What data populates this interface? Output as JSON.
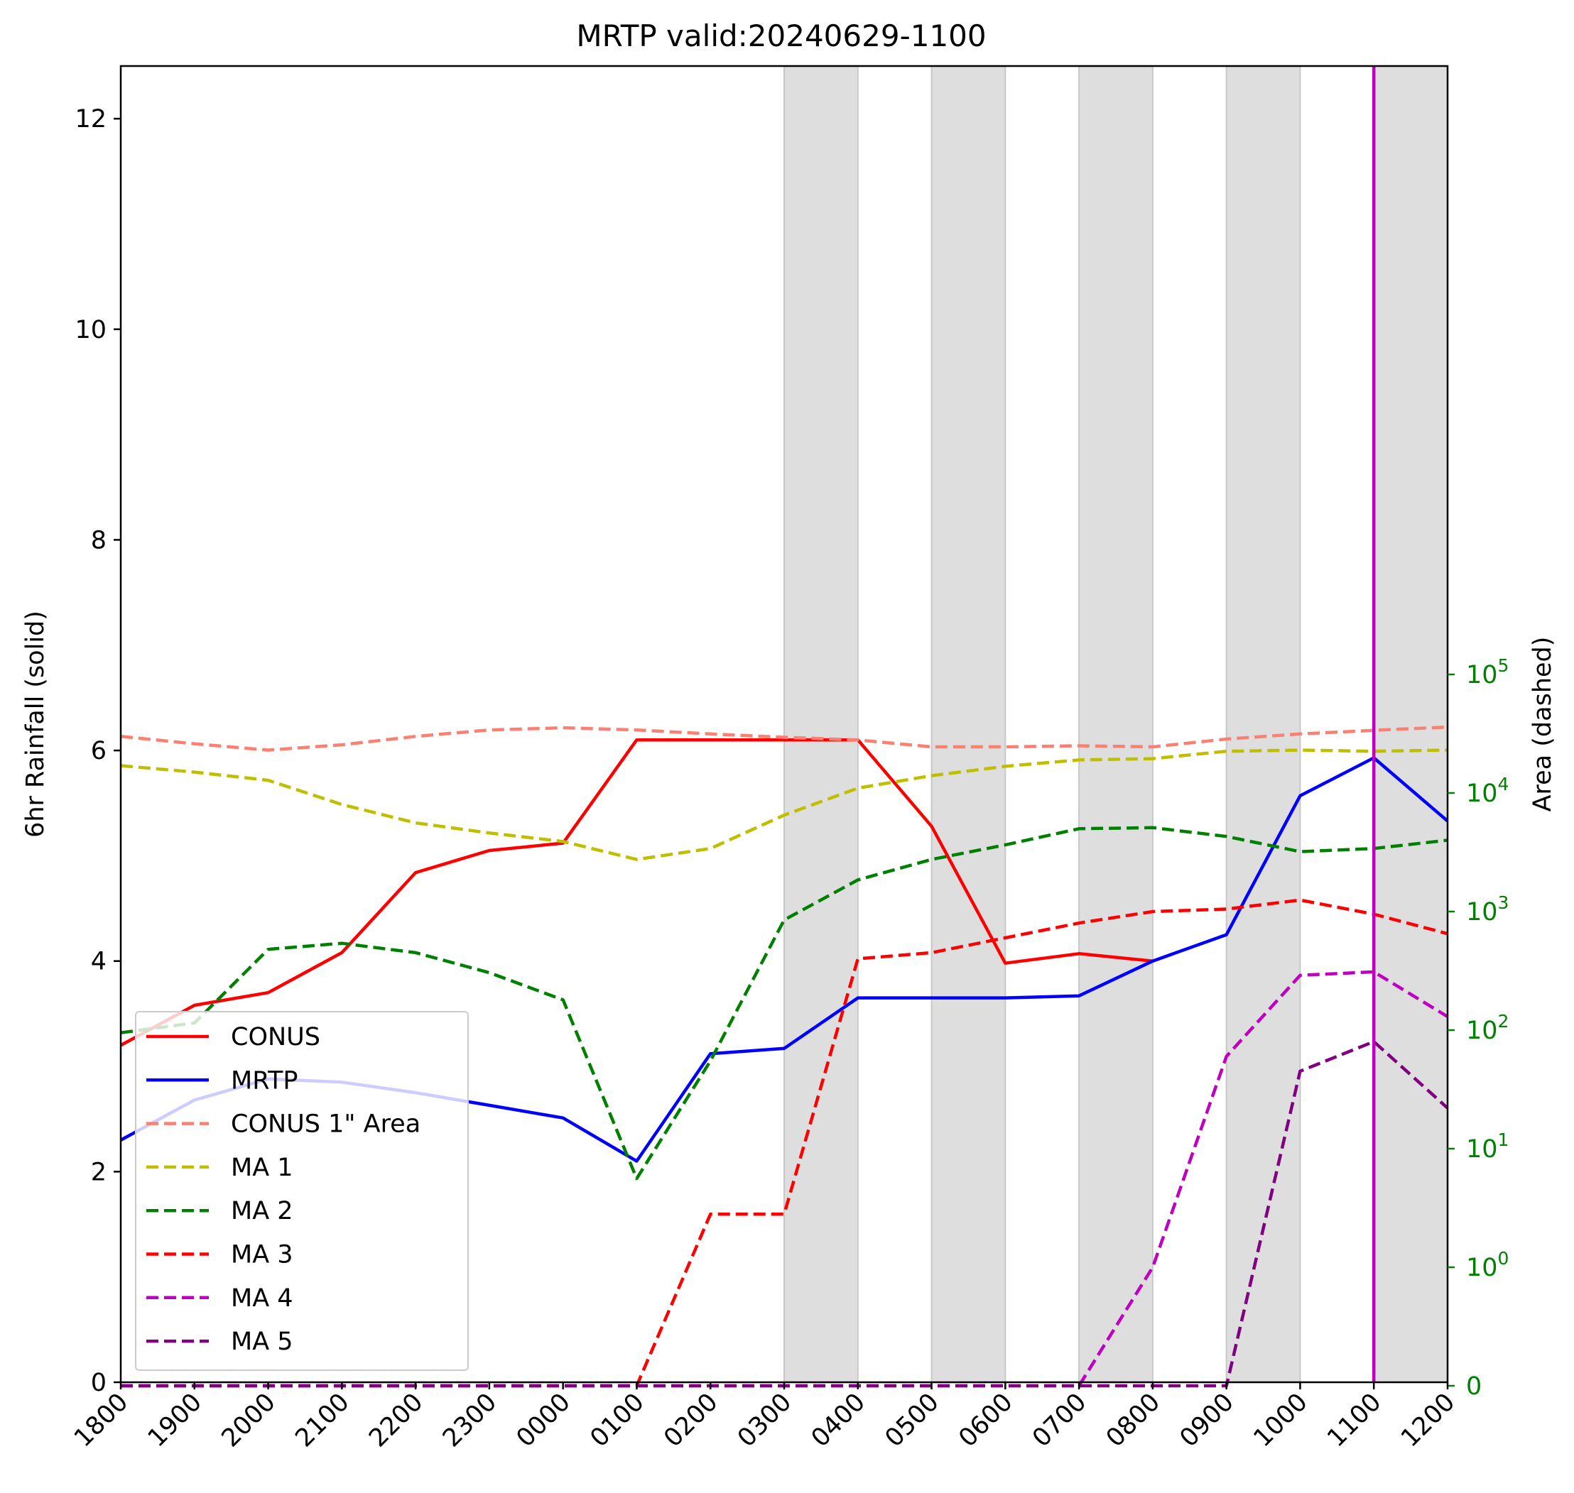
{
  "chart_data": {
    "type": "line",
    "title": "MRTP valid:20240629-1100",
    "xlabel": "",
    "ylabel": "6hr Rainfall (solid)",
    "ylabel_right": "Area (dashed)",
    "categories": [
      "1800",
      "1900",
      "2000",
      "2100",
      "2200",
      "2300",
      "0000",
      "0100",
      "0200",
      "0300",
      "0400",
      "0500",
      "0600",
      "0700",
      "0800",
      "0900",
      "1000",
      "1100",
      "1200"
    ],
    "ylim": [
      0,
      12.5
    ],
    "yticks": [
      0,
      2,
      4,
      6,
      8,
      10,
      12
    ],
    "y2_scale": "symlog",
    "y2_ticks": [
      {
        "value": 0,
        "base": "0",
        "exp": ""
      },
      {
        "value": 1,
        "base": "10",
        "exp": "0"
      },
      {
        "value": 10,
        "base": "10",
        "exp": "1"
      },
      {
        "value": 100,
        "base": "10",
        "exp": "2"
      },
      {
        "value": 1000,
        "base": "10",
        "exp": "3"
      },
      {
        "value": 10000,
        "base": "10",
        "exp": "4"
      },
      {
        "value": 100000,
        "base": "10",
        "exp": "5"
      }
    ],
    "shaded_ranges": [
      [
        "0300",
        "0400"
      ],
      [
        "0500",
        "0600"
      ],
      [
        "0700",
        "0800"
      ],
      [
        "0900",
        "1000"
      ],
      [
        "1100",
        "1200"
      ]
    ],
    "valid_marker": "1100",
    "legend_position": "lower left",
    "grid": false,
    "series": [
      {
        "name": "CONUS",
        "axis": "left",
        "style": "solid",
        "color": "#ff0000",
        "values": [
          3.2,
          3.58,
          3.7,
          4.08,
          4.84,
          5.05,
          5.12,
          6.1,
          6.1,
          6.1,
          6.1,
          5.28,
          3.98,
          4.07,
          4.0,
          null,
          null,
          null,
          null
        ]
      },
      {
        "name": "MRTP",
        "axis": "left",
        "style": "solid",
        "color": "#0000ff",
        "values": [
          2.3,
          2.68,
          2.88,
          2.85,
          2.75,
          2.63,
          2.51,
          2.1,
          3.12,
          3.17,
          3.65,
          3.65,
          3.65,
          3.67,
          4.0,
          4.25,
          5.57,
          5.93,
          5.33
        ]
      },
      {
        "name": "CONUS 1\" Area",
        "axis": "right",
        "style": "dashed",
        "color": "#fa8072",
        "values": [
          30000,
          26000,
          23000,
          25500,
          30000,
          34000,
          35500,
          34000,
          31500,
          29500,
          28000,
          24500,
          24500,
          25000,
          24500,
          28500,
          31500,
          33800,
          36000
        ]
      },
      {
        "name": "MA 1",
        "axis": "right",
        "style": "dashed",
        "color": "#bfbf00",
        "values": [
          17000,
          15000,
          12800,
          8000,
          5600,
          4600,
          3900,
          2750,
          3400,
          6500,
          11000,
          14000,
          16800,
          19000,
          19500,
          22500,
          23000,
          22500,
          23000
        ]
      },
      {
        "name": "MA 2",
        "axis": "right",
        "style": "dashed",
        "color": "#008000",
        "values": [
          95,
          115,
          480,
          540,
          450,
          305,
          180,
          5.6,
          55,
          850,
          1850,
          2750,
          3650,
          5000,
          5100,
          4300,
          3200,
          3400,
          4000
        ]
      },
      {
        "name": "MA 3",
        "axis": "right",
        "style": "dashed",
        "color": "#ff0000",
        "values": [
          0,
          0,
          0,
          0,
          0,
          0,
          0,
          0,
          2.8,
          2.8,
          400,
          450,
          600,
          800,
          1000,
          1050,
          1250,
          950,
          650
        ]
      },
      {
        "name": "MA 4",
        "axis": "right",
        "style": "dashed",
        "color": "#bf00bf",
        "values": [
          0,
          0,
          0,
          0,
          0,
          0,
          0,
          0,
          0,
          0,
          0,
          0,
          0,
          0,
          1.0,
          60,
          290,
          310,
          130
        ]
      },
      {
        "name": "MA 5",
        "axis": "right",
        "style": "dashed",
        "color": "#800080",
        "values": [
          0,
          0,
          0,
          0,
          0,
          0,
          0,
          0,
          0,
          0,
          0,
          0,
          0,
          0,
          0,
          0,
          45,
          80,
          22
        ]
      }
    ]
  }
}
